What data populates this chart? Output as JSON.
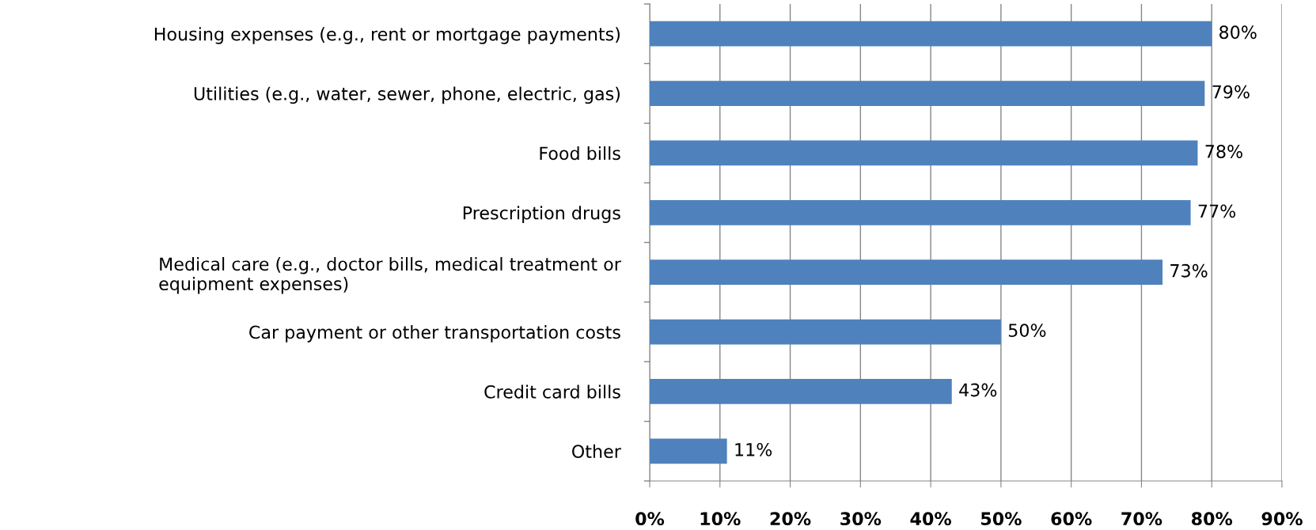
{
  "chart_data": {
    "type": "bar",
    "orientation": "horizontal",
    "categories": [
      "Housing expenses (e.g., rent or mortgage payments)",
      "Utilities (e.g., water, sewer, phone, electric, gas)",
      "Food bills",
      "Prescription drugs",
      "Medical care (e.g., doctor bills, medical treatment or\nequipment expenses)",
      "Car payment or other transportation costs",
      "Credit card bills",
      "Other"
    ],
    "values": [
      80,
      79,
      78,
      77,
      73,
      50,
      43,
      11
    ],
    "value_labels": [
      "80%",
      "79%",
      "78%",
      "77%",
      "73%",
      "50%",
      "43%",
      "11%"
    ],
    "color": "#4f81bd",
    "xlim": [
      0,
      90
    ],
    "xticks": [
      {
        "value": 0,
        "label": "0%"
      },
      {
        "value": 10,
        "label": "10%"
      },
      {
        "value": 20,
        "label": "20%"
      },
      {
        "value": 30,
        "label": "30%"
      },
      {
        "value": 40,
        "label": "40%"
      },
      {
        "value": 50,
        "label": "50%"
      },
      {
        "value": 60,
        "label": "60%"
      },
      {
        "value": 70,
        "label": "70%"
      },
      {
        "value": 80,
        "label": "80%"
      },
      {
        "value": 90,
        "label": "90%"
      }
    ],
    "grid": "x"
  }
}
